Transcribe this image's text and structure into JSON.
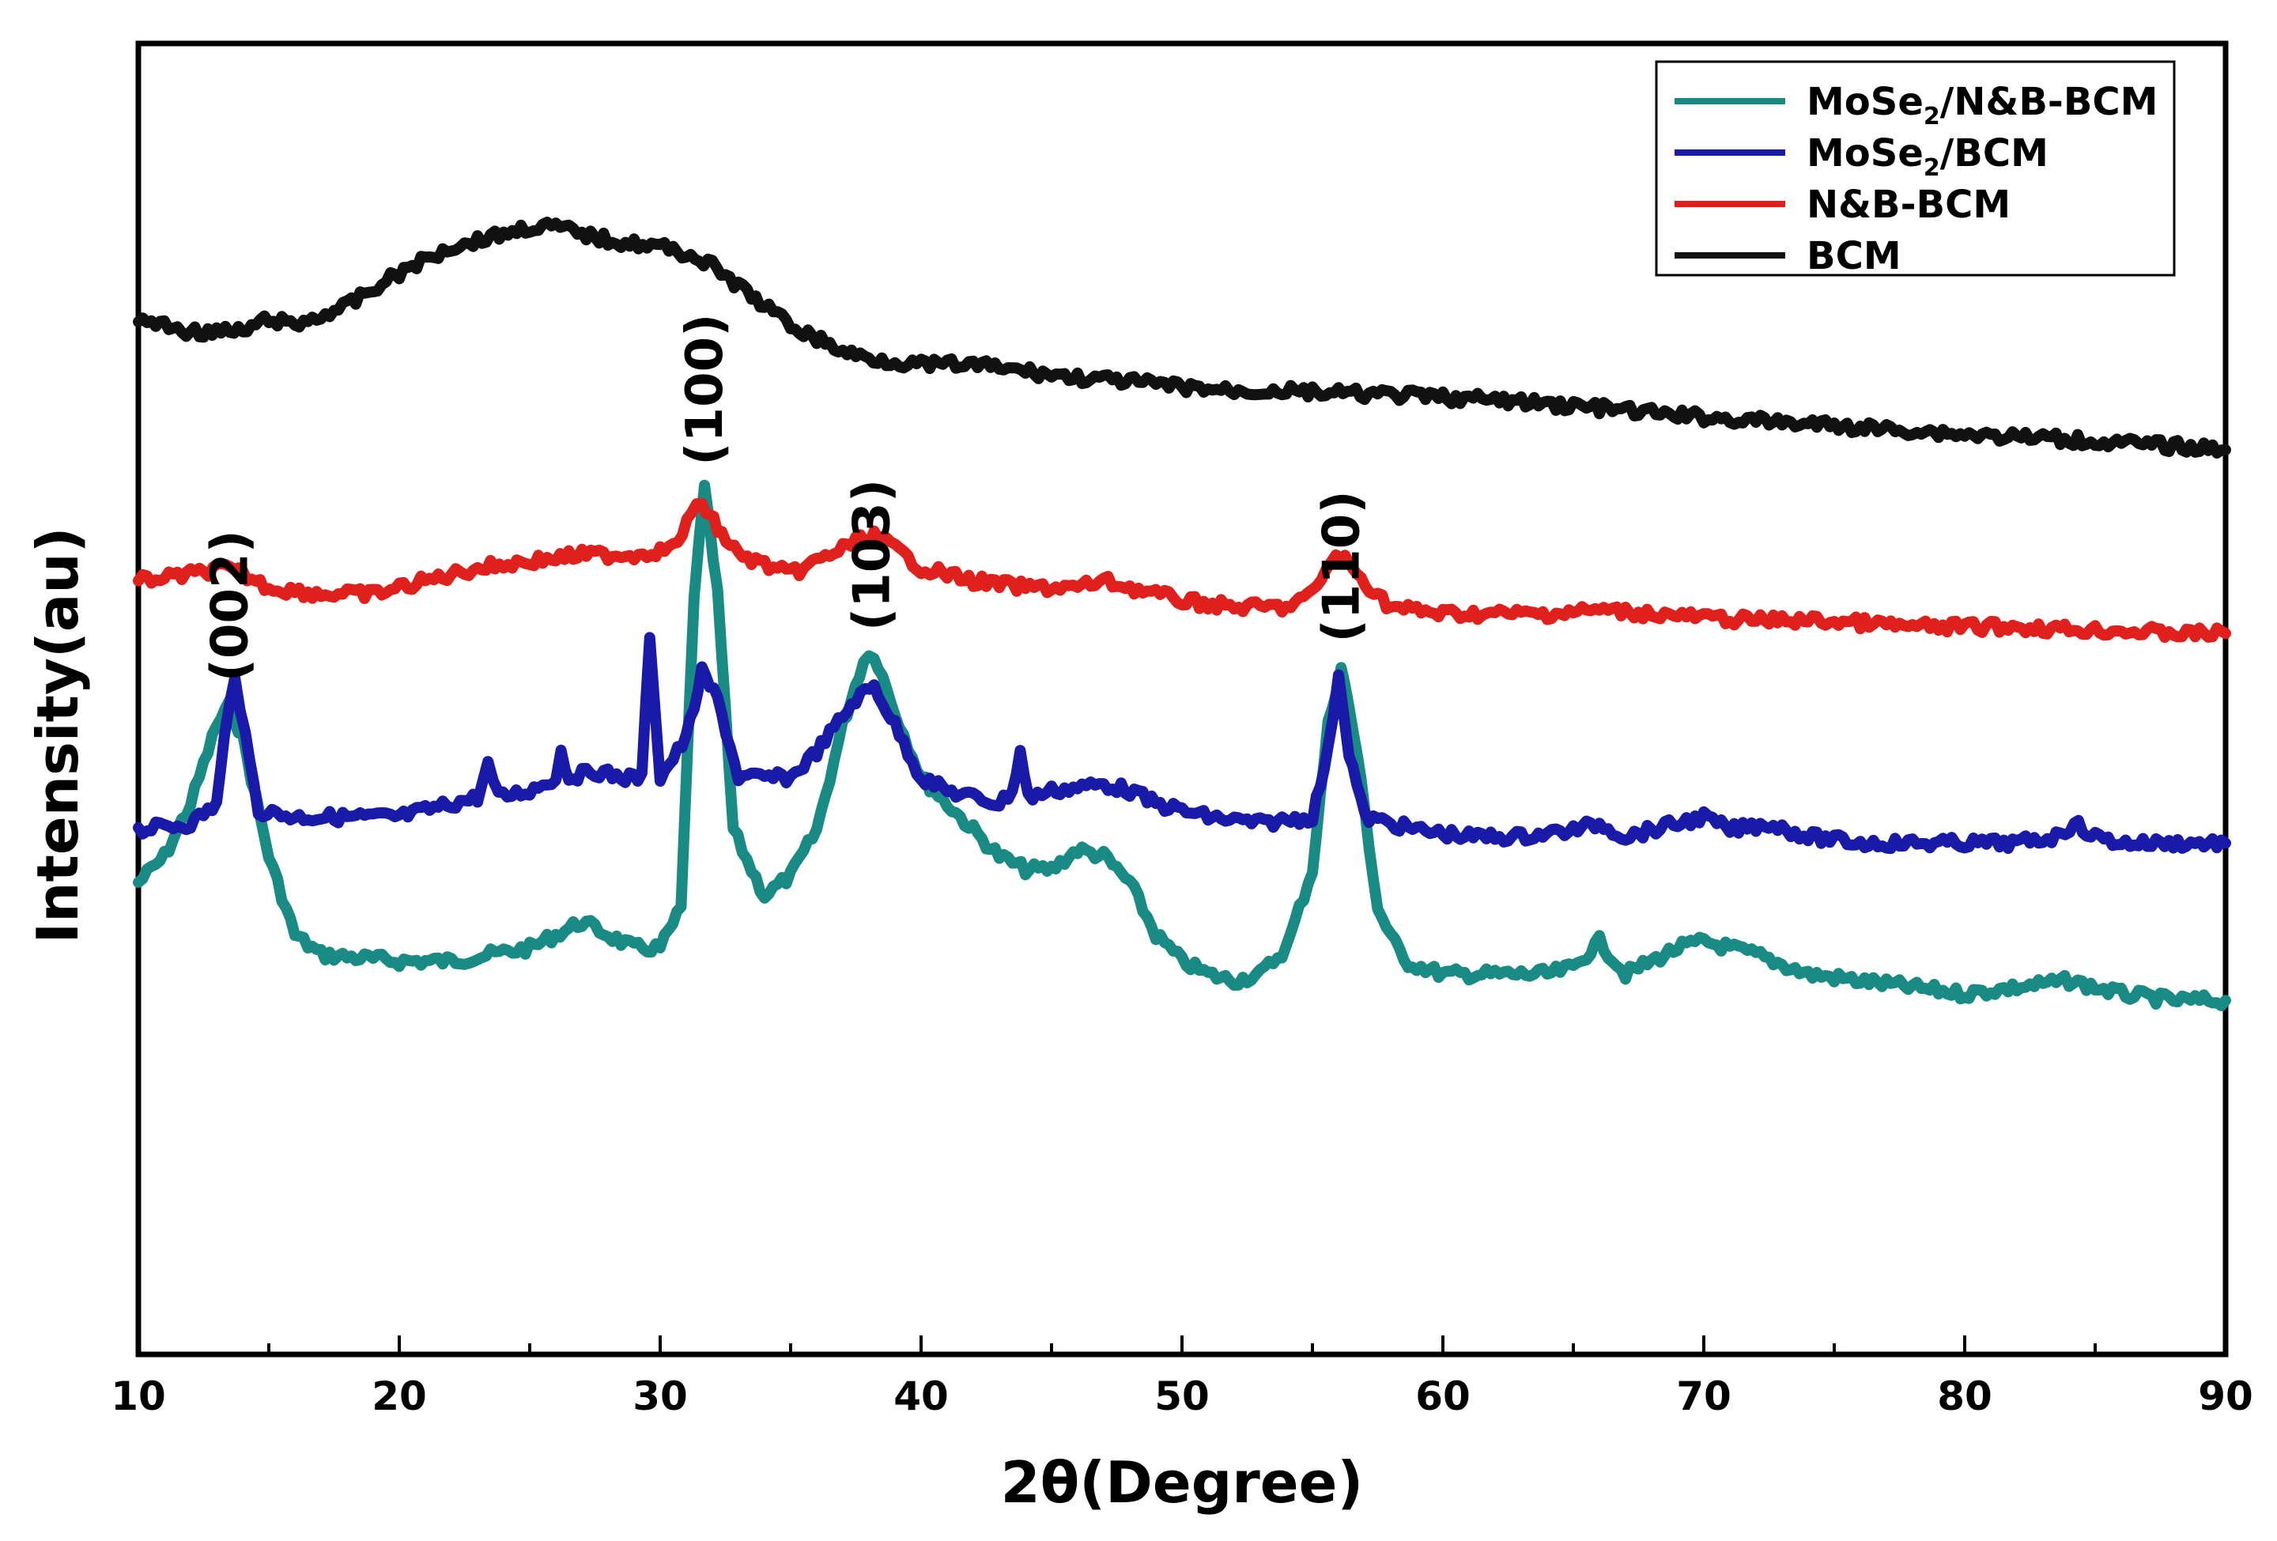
{
  "chart_data": {
    "type": "line",
    "xlabel": "2θ(Degree)",
    "ylabel": "Intensity(au)",
    "xlim": [
      10,
      90
    ],
    "xticks": [
      10,
      20,
      30,
      40,
      50,
      60,
      70,
      80,
      90
    ],
    "xtick_labels": [
      "10",
      "20",
      "30",
      "40",
      "50",
      "60",
      "70",
      "80",
      "90"
    ],
    "yticks_shown": false,
    "grid": false,
    "legend_position": "top-right",
    "peak_annotations": [
      {
        "label": "(002)",
        "x": 13.5
      },
      {
        "label": "(100)",
        "x": 31.7
      },
      {
        "label": "(103)",
        "x": 38.1
      },
      {
        "label": "(110)",
        "x": 56.1
      }
    ],
    "series": [
      {
        "name": "MoSe2/N&B-BCM",
        "legend_main": "MoSe",
        "legend_sub": "2",
        "legend_rest": "/N&B-BCM",
        "color": "#1a8a84",
        "points": [
          [
            10,
            64
          ],
          [
            11,
            62
          ],
          [
            12,
            58
          ],
          [
            13,
            52
          ],
          [
            13.5,
            50.5
          ],
          [
            14,
            53
          ],
          [
            15,
            62
          ],
          [
            16,
            68
          ],
          [
            17,
            69.5
          ],
          [
            20,
            70
          ],
          [
            22,
            70
          ],
          [
            25,
            69
          ],
          [
            26,
            68
          ],
          [
            27,
            67
          ],
          [
            28,
            68
          ],
          [
            29,
            69
          ],
          [
            30,
            69
          ],
          [
            30.8,
            66
          ],
          [
            31.3,
            42
          ],
          [
            31.7,
            34
          ],
          [
            32.2,
            42
          ],
          [
            32.8,
            60
          ],
          [
            33.5,
            63
          ],
          [
            34,
            65
          ],
          [
            35,
            63.5
          ],
          [
            36,
            60
          ],
          [
            37,
            52
          ],
          [
            37.8,
            47
          ],
          [
            38.2,
            46.5
          ],
          [
            39,
            51
          ],
          [
            40,
            56
          ],
          [
            41,
            58
          ],
          [
            42,
            60
          ],
          [
            43,
            62
          ],
          [
            44,
            63
          ],
          [
            45,
            63
          ],
          [
            46,
            61.5
          ],
          [
            47,
            62
          ],
          [
            48,
            64
          ],
          [
            49,
            68
          ],
          [
            50,
            70
          ],
          [
            51,
            71
          ],
          [
            52,
            71.5
          ],
          [
            53,
            71
          ],
          [
            54,
            69
          ],
          [
            55,
            63
          ],
          [
            55.6,
            52
          ],
          [
            56.1,
            47.5
          ],
          [
            56.7,
            54
          ],
          [
            57.5,
            66
          ],
          [
            58.5,
            70
          ],
          [
            60,
            71
          ],
          [
            62,
            71
          ],
          [
            64,
            71
          ],
          [
            65,
            70.5
          ],
          [
            66,
            68.5
          ],
          [
            67,
            71
          ],
          [
            69,
            69
          ],
          [
            70,
            68.5
          ],
          [
            72,
            69.5
          ],
          [
            74,
            71
          ],
          [
            76,
            71.5
          ],
          [
            78,
            72
          ],
          [
            80,
            72.5
          ],
          [
            82,
            72
          ],
          [
            84,
            71.5
          ],
          [
            86,
            72.5
          ],
          [
            88,
            73
          ],
          [
            90,
            73
          ]
        ]
      },
      {
        "name": "MoSe2/BCM",
        "legend_main": "MoSe",
        "legend_sub": "2",
        "legend_rest": "/BCM",
        "color": "#1a1aa8",
        "points": [
          [
            10,
            60
          ],
          [
            12,
            59.5
          ],
          [
            13,
            58
          ],
          [
            13.3,
            53
          ],
          [
            13.7,
            48
          ],
          [
            14.1,
            53
          ],
          [
            14.6,
            58.5
          ],
          [
            16,
            59
          ],
          [
            18,
            59
          ],
          [
            20,
            59
          ],
          [
            22,
            58
          ],
          [
            23,
            57.5
          ],
          [
            23.4,
            55
          ],
          [
            23.8,
            57.5
          ],
          [
            25,
            57
          ],
          [
            26,
            56
          ],
          [
            26.2,
            54
          ],
          [
            26.5,
            56
          ],
          [
            27.5,
            55.5
          ],
          [
            28.5,
            56
          ],
          [
            29.3,
            56
          ],
          [
            29.6,
            45
          ],
          [
            30,
            56
          ],
          [
            31,
            53
          ],
          [
            31.6,
            48
          ],
          [
            32.2,
            50
          ],
          [
            33,
            56
          ],
          [
            35,
            56
          ],
          [
            36,
            54
          ],
          [
            37.5,
            50
          ],
          [
            38.2,
            49
          ],
          [
            39,
            52
          ],
          [
            40,
            56
          ],
          [
            41,
            57
          ],
          [
            42,
            57.5
          ],
          [
            43,
            58
          ],
          [
            43.5,
            57
          ],
          [
            43.8,
            54
          ],
          [
            44.1,
            57.5
          ],
          [
            45,
            57
          ],
          [
            47,
            56.5
          ],
          [
            48,
            57
          ],
          [
            49,
            58
          ],
          [
            51,
            59
          ],
          [
            53,
            59.5
          ],
          [
            55,
            59
          ],
          [
            55.6,
            54
          ],
          [
            56,
            48
          ],
          [
            56.4,
            54
          ],
          [
            57,
            59
          ],
          [
            59,
            60
          ],
          [
            61,
            60.5
          ],
          [
            63,
            60.5
          ],
          [
            65,
            60
          ],
          [
            66,
            59.5
          ],
          [
            67,
            60.5
          ],
          [
            69,
            59.5
          ],
          [
            70,
            59
          ],
          [
            71,
            60
          ],
          [
            72.5,
            59.5
          ],
          [
            74,
            60.5
          ],
          [
            76,
            61
          ],
          [
            78,
            61
          ],
          [
            80,
            61
          ],
          [
            82,
            61
          ],
          [
            83.5,
            60.5
          ],
          [
            84.2,
            59.5
          ],
          [
            85,
            60.5
          ],
          [
            86,
            61
          ],
          [
            88,
            61
          ],
          [
            90,
            61
          ]
        ]
      },
      {
        "name": "N&B-BCM",
        "legend_main": "N&B-BCM",
        "legend_sub": "",
        "legend_rest": "",
        "color": "#e0201c",
        "points": [
          [
            10,
            41
          ],
          [
            12,
            40.5
          ],
          [
            13.2,
            40
          ],
          [
            14,
            40.5
          ],
          [
            15,
            41.5
          ],
          [
            17,
            42
          ],
          [
            19,
            42
          ],
          [
            21,
            41
          ],
          [
            23,
            40
          ],
          [
            25,
            39.5
          ],
          [
            27,
            39
          ],
          [
            29,
            39
          ],
          [
            30.5,
            38.5
          ],
          [
            31.2,
            36
          ],
          [
            31.6,
            35
          ],
          [
            32.2,
            37
          ],
          [
            33,
            39
          ],
          [
            35,
            40.5
          ],
          [
            36.5,
            39
          ],
          [
            37.5,
            38
          ],
          [
            38.2,
            37.5
          ],
          [
            39,
            38.5
          ],
          [
            40,
            40
          ],
          [
            42,
            41
          ],
          [
            44,
            41.5
          ],
          [
            46,
            41.5
          ],
          [
            47,
            41
          ],
          [
            48,
            41.5
          ],
          [
            50,
            42.5
          ],
          [
            52,
            43
          ],
          [
            54,
            43
          ],
          [
            55,
            42
          ],
          [
            55.7,
            39.5
          ],
          [
            56.1,
            39
          ],
          [
            56.7,
            40.5
          ],
          [
            58,
            43
          ],
          [
            60,
            43.5
          ],
          [
            62,
            43.5
          ],
          [
            64,
            43.5
          ],
          [
            66,
            43.2
          ],
          [
            68,
            43.5
          ],
          [
            70,
            43.8
          ],
          [
            72,
            44
          ],
          [
            74,
            44
          ],
          [
            76,
            44.2
          ],
          [
            78,
            44.5
          ],
          [
            80,
            44.5
          ],
          [
            82,
            44.5
          ],
          [
            84,
            44.7
          ],
          [
            86,
            44.8
          ],
          [
            88,
            45
          ],
          [
            90,
            45
          ]
        ]
      },
      {
        "name": "BCM",
        "legend_main": "BCM",
        "legend_sub": "",
        "legend_rest": "",
        "color": "#111111",
        "points": [
          [
            10,
            21
          ],
          [
            12,
            22
          ],
          [
            14,
            22
          ],
          [
            15,
            21
          ],
          [
            16,
            21.5
          ],
          [
            18,
            20
          ],
          [
            20,
            17.5
          ],
          [
            22,
            15.5
          ],
          [
            24,
            14.5
          ],
          [
            25,
            14
          ],
          [
            26,
            14
          ],
          [
            27,
            14.5
          ],
          [
            28,
            15
          ],
          [
            30,
            15.5
          ],
          [
            31,
            16
          ],
          [
            32,
            17
          ],
          [
            33,
            18.5
          ],
          [
            34,
            20
          ],
          [
            35,
            21.5
          ],
          [
            36,
            22.5
          ],
          [
            37,
            23.5
          ],
          [
            38,
            24
          ],
          [
            40,
            24.5
          ],
          [
            42,
            24.5
          ],
          [
            44,
            25
          ],
          [
            46,
            25.5
          ],
          [
            48,
            25.8
          ],
          [
            50,
            26.2
          ],
          [
            52,
            26.5
          ],
          [
            54,
            26.5
          ],
          [
            56,
            26.7
          ],
          [
            58,
            26.8
          ],
          [
            60,
            27
          ],
          [
            62,
            27.2
          ],
          [
            64,
            27.5
          ],
          [
            66,
            27.8
          ],
          [
            68,
            28.2
          ],
          [
            70,
            28.5
          ],
          [
            72,
            28.8
          ],
          [
            74,
            29
          ],
          [
            76,
            29.3
          ],
          [
            78,
            29.5
          ],
          [
            80,
            29.8
          ],
          [
            82,
            30
          ],
          [
            84,
            30.2
          ],
          [
            86,
            30.5
          ],
          [
            88,
            30.7
          ],
          [
            90,
            31
          ]
        ]
      }
    ]
  }
}
